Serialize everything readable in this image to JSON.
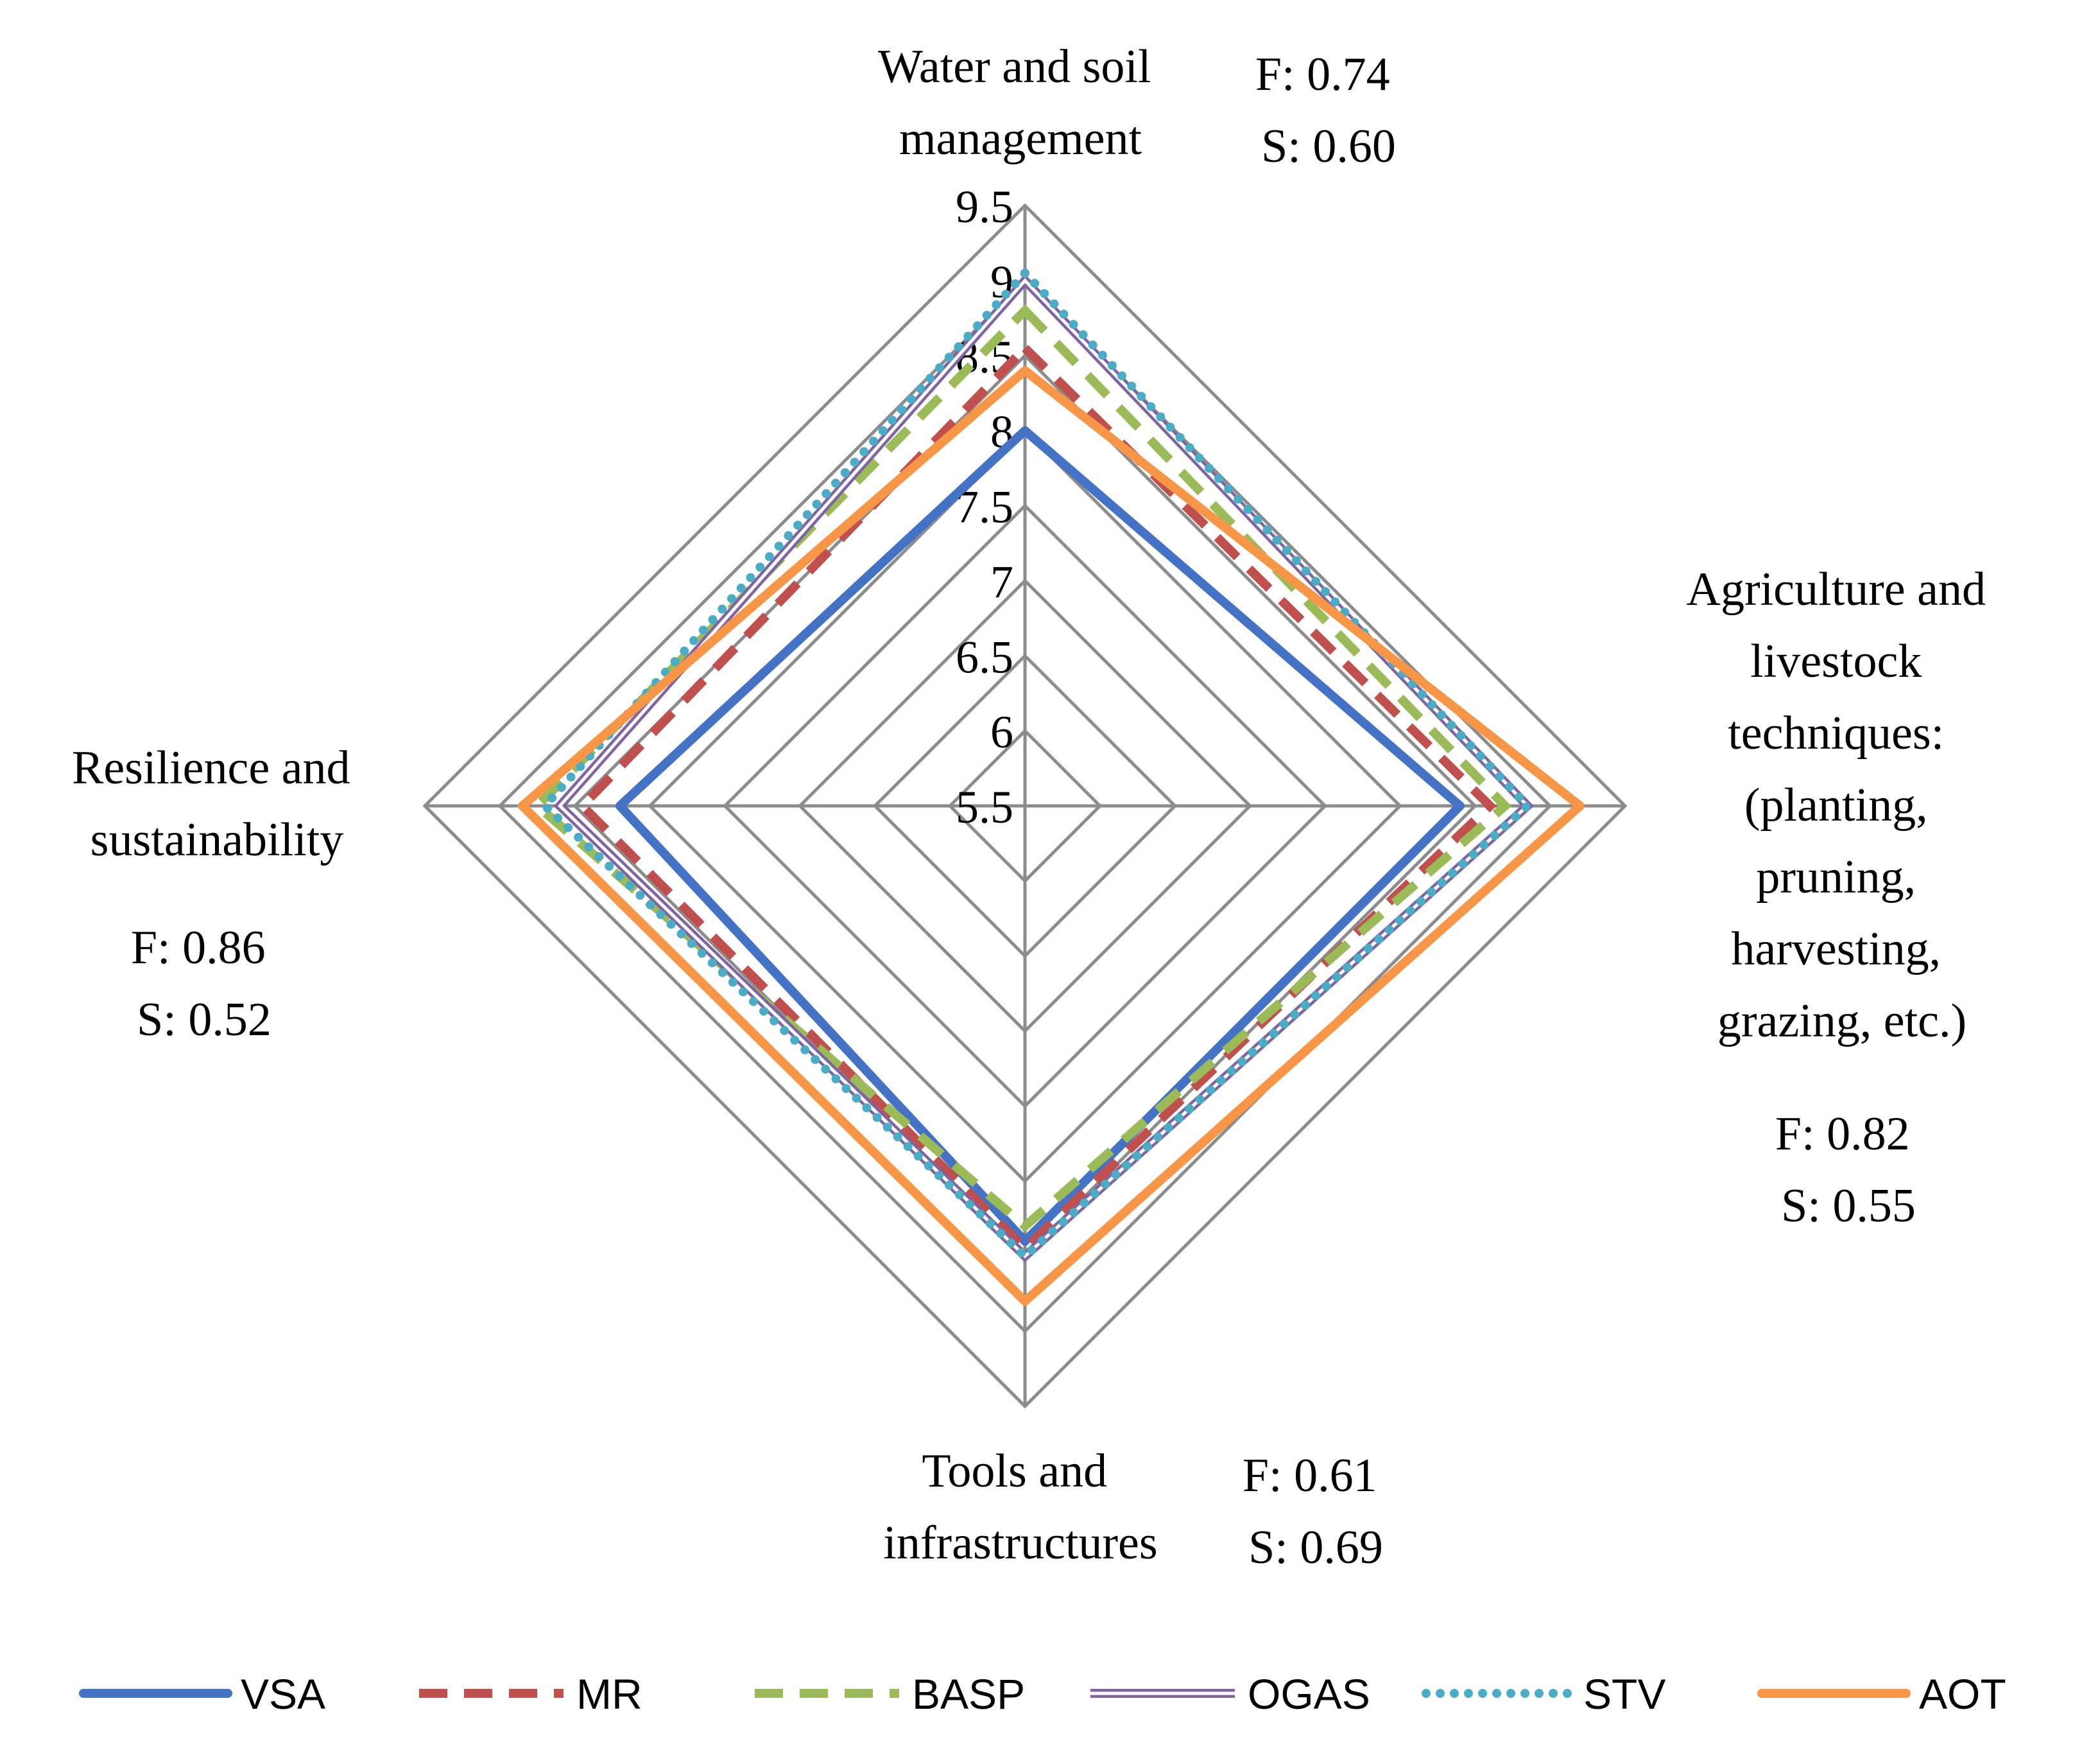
{
  "chart_data": {
    "type": "radar",
    "axes": [
      {
        "label_lines": [
          "Water and soil",
          "management"
        ],
        "stats": [
          "F: 0.74",
          "S: 0.60"
        ]
      },
      {
        "label_lines": [
          "Agriculture and",
          "livestock",
          "techniques:",
          "(planting,",
          "pruning,",
          "harvesting,",
          "grazing, etc.)"
        ],
        "stats": [
          "F: 0.82",
          "S: 0.55"
        ]
      },
      {
        "label_lines": [
          "Tools and",
          "infrastructures"
        ],
        "stats": [
          "F: 0.61",
          "S: 0.69"
        ]
      },
      {
        "label_lines": [
          "Resilience and",
          "sustainability"
        ],
        "stats": [
          "F: 0.86",
          "S: 0.52"
        ]
      }
    ],
    "range": [
      5.5,
      9.5
    ],
    "ticks": [
      5.5,
      6,
      6.5,
      7,
      7.5,
      8,
      8.5,
      9,
      9.5
    ],
    "tick_labels": [
      "5.5",
      "6",
      "6.5",
      "7",
      "7.5",
      "8",
      "8.5",
      "9",
      "9.5"
    ],
    "series": [
      {
        "name": "VSA",
        "values": [
          8.0,
          8.4,
          8.4,
          8.2
        ],
        "color": "#4472C4",
        "style": "solid"
      },
      {
        "name": "MR",
        "values": [
          8.55,
          8.6,
          8.45,
          8.45
        ],
        "color": "#C0504D",
        "style": "dash"
      },
      {
        "name": "BASP",
        "values": [
          8.8,
          8.7,
          8.3,
          8.75
        ],
        "color": "#9BBB59",
        "style": "dash"
      },
      {
        "name": "OGAS",
        "values": [
          9.0,
          8.85,
          8.5,
          8.6
        ],
        "color": "#8064A2",
        "style": "double"
      },
      {
        "name": "STV",
        "values": [
          9.05,
          8.85,
          8.5,
          8.7
        ],
        "color": "#4BACC6",
        "style": "dot"
      },
      {
        "name": "AOT",
        "values": [
          8.4,
          9.2,
          8.8,
          8.85
        ],
        "color": "#F79646",
        "style": "solid"
      }
    ]
  }
}
